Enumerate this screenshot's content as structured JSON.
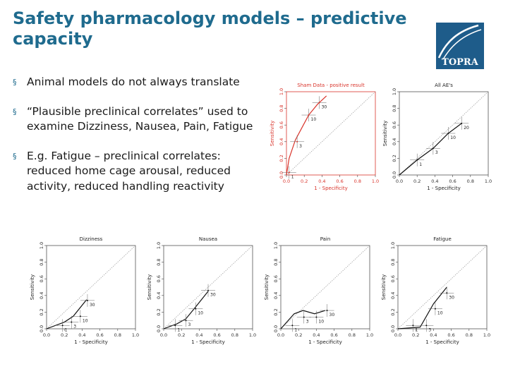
{
  "slide": {
    "title": "Safety pharmacology models – predictive capacity",
    "logo_text": "TOPRA",
    "bullet_marker": "§",
    "bullets": [
      "Animal models do not always translate",
      "“Plausible preclinical correlates” used to examine Dizziness, Nausea, Pain, Fatigue",
      "E.g. Fatigue – preclinical correlates: reduced home cage arousal, reduced activity, reduced handling reactivity"
    ]
  },
  "colors": {
    "title": "#1f6b8e",
    "logo": "#1e5c8a",
    "sham_curve": "#d9342b",
    "curve": "#111111"
  },
  "chart_data": [
    {
      "type": "line",
      "title": "Sham Data - positive result",
      "xlabel": "1 - Specificity",
      "ylabel": "Sensitivity",
      "xlim": [
        0,
        1
      ],
      "ylim": [
        0,
        1
      ],
      "xticks": [
        "0.0",
        "0.2",
        "0.4",
        "0.6",
        "0.8",
        "1.0"
      ],
      "yticks": [
        "0.0",
        "0.2",
        "0.4",
        "0.6",
        "0.8",
        "1.0"
      ],
      "color": "#d9342b",
      "x": [
        0.0,
        0.03,
        0.1,
        0.18,
        0.25,
        0.35,
        0.45
      ],
      "y": [
        0.0,
        0.2,
        0.42,
        0.58,
        0.72,
        0.85,
        0.95
      ],
      "points": [
        {
          "label": "1",
          "x": 0.03,
          "y": 0.03
        },
        {
          "label": "3",
          "x": 0.12,
          "y": 0.4
        },
        {
          "label": "10",
          "x": 0.25,
          "y": 0.72
        },
        {
          "label": "30",
          "x": 0.37,
          "y": 0.87
        }
      ]
    },
    {
      "type": "line",
      "title": "All AE's",
      "xlabel": "1 - Specificity",
      "ylabel": "Sensitivity",
      "xlim": [
        0,
        1
      ],
      "ylim": [
        0,
        1
      ],
      "xticks": [
        "0.0",
        "0.2",
        "0.4",
        "0.6",
        "0.8",
        "1.0"
      ],
      "yticks": [
        "0.0",
        "0.2",
        "0.4",
        "0.6",
        "0.8",
        "1.0"
      ],
      "color": "#111111",
      "x": [
        0.0,
        0.2,
        0.38,
        0.55,
        0.7
      ],
      "y": [
        0.0,
        0.18,
        0.32,
        0.5,
        0.62
      ],
      "points": [
        {
          "label": "1",
          "x": 0.2,
          "y": 0.18
        },
        {
          "label": "3",
          "x": 0.38,
          "y": 0.32
        },
        {
          "label": "10",
          "x": 0.55,
          "y": 0.5
        },
        {
          "label": "20",
          "x": 0.7,
          "y": 0.62
        }
      ]
    },
    {
      "type": "line",
      "title": "Dizziness",
      "xlabel": "1 - Specificity",
      "ylabel": "Sensitivity",
      "xlim": [
        0,
        1
      ],
      "ylim": [
        0,
        1
      ],
      "xticks": [
        "0.0",
        "0.2",
        "0.4",
        "0.6",
        "0.8",
        "1.0"
      ],
      "yticks": [
        "0.0",
        "0.2",
        "0.4",
        "0.6",
        "0.8",
        "1.0"
      ],
      "color": "#111111",
      "x": [
        0.0,
        0.2,
        0.3,
        0.45
      ],
      "y": [
        0.0,
        0.08,
        0.15,
        0.35
      ],
      "points": [
        {
          "label": "1",
          "x": 0.18,
          "y": 0.04
        },
        {
          "label": "3",
          "x": 0.28,
          "y": 0.08
        },
        {
          "label": "10",
          "x": 0.38,
          "y": 0.15
        },
        {
          "label": "30",
          "x": 0.46,
          "y": 0.34
        }
      ]
    },
    {
      "type": "line",
      "title": "Nausea",
      "xlabel": "1 - Specificity",
      "ylabel": "Sensitivity",
      "xlim": [
        0,
        1
      ],
      "ylim": [
        0,
        1
      ],
      "xticks": [
        "0.0",
        "0.2",
        "0.4",
        "0.6",
        "0.8",
        "1.0"
      ],
      "yticks": [
        "0.0",
        "0.2",
        "0.4",
        "0.6",
        "0.8",
        "1.0"
      ],
      "color": "#111111",
      "x": [
        0.0,
        0.15,
        0.25,
        0.35,
        0.5
      ],
      "y": [
        0.0,
        0.06,
        0.12,
        0.25,
        0.45
      ],
      "points": [
        {
          "label": "1",
          "x": 0.13,
          "y": 0.04
        },
        {
          "label": "3",
          "x": 0.25,
          "y": 0.1
        },
        {
          "label": "10",
          "x": 0.36,
          "y": 0.24
        },
        {
          "label": "30",
          "x": 0.5,
          "y": 0.46
        }
      ]
    },
    {
      "type": "line",
      "title": "Pain",
      "xlabel": "1 - Specificity",
      "ylabel": "Sensitivity",
      "xlim": [
        0,
        1
      ],
      "ylim": [
        0,
        1
      ],
      "xticks": [
        "0.0",
        "0.2",
        "0.4",
        "0.6",
        "0.8",
        "1.0"
      ],
      "yticks": [
        "0.0",
        "0.2",
        "0.4",
        "0.6",
        "0.8",
        "1.0"
      ],
      "color": "#111111",
      "x": [
        0.0,
        0.15,
        0.25,
        0.38,
        0.5
      ],
      "y": [
        0.0,
        0.18,
        0.22,
        0.18,
        0.22
      ],
      "points": [
        {
          "label": "1",
          "x": 0.13,
          "y": 0.04
        },
        {
          "label": "3",
          "x": 0.26,
          "y": 0.14
        },
        {
          "label": "10",
          "x": 0.4,
          "y": 0.14
        },
        {
          "label": "30",
          "x": 0.52,
          "y": 0.22
        }
      ]
    },
    {
      "type": "line",
      "title": "Fatigue",
      "xlabel": "1 - Specificity",
      "ylabel": "Sensitivity",
      "xlim": [
        0,
        1
      ],
      "ylim": [
        0,
        1
      ],
      "xticks": [
        "0.0",
        "0.2",
        "0.4",
        "0.6",
        "0.8",
        "1.0"
      ],
      "yticks": [
        "0.0",
        "0.2",
        "0.4",
        "0.6",
        "0.8",
        "1.0"
      ],
      "color": "#111111",
      "x": [
        0.0,
        0.25,
        0.4,
        0.55
      ],
      "y": [
        0.0,
        0.02,
        0.3,
        0.5
      ],
      "points": [
        {
          "label": "1",
          "x": 0.17,
          "y": 0.04
        },
        {
          "label": "3",
          "x": 0.32,
          "y": 0.04
        },
        {
          "label": "10",
          "x": 0.42,
          "y": 0.24
        },
        {
          "label": "30",
          "x": 0.55,
          "y": 0.43
        }
      ]
    }
  ]
}
